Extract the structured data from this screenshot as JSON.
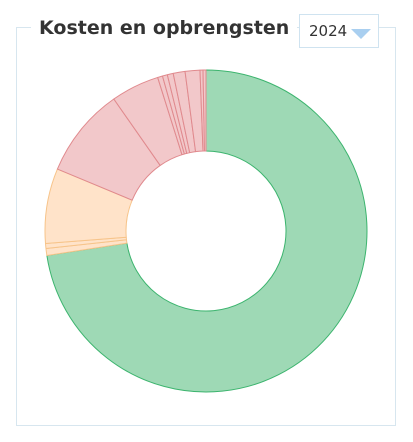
{
  "header": {
    "title": "Kosten en opbrengsten",
    "year_selector": {
      "selected": "2024",
      "icon": "chevron-down-icon"
    }
  },
  "colors": {
    "revenue_fill": "#9ed9b5",
    "revenue_stroke": "#3cb46e",
    "warning_fill": "#ffe3c9",
    "warning_stroke": "#f7c48a",
    "cost_fill": "#f2c8ca",
    "cost_stroke": "#e08a8e",
    "card_border": "#d7e6ef"
  },
  "chart_data": {
    "type": "pie",
    "donut": true,
    "title": "Kosten en opbrengsten",
    "slices": [
      {
        "value": 73.3,
        "group": "revenue"
      },
      {
        "value": 0.7,
        "group": "warning"
      },
      {
        "value": 0.5,
        "group": "warning"
      },
      {
        "value": 7.6,
        "group": "warning"
      },
      {
        "value": 9.1,
        "group": "cost"
      },
      {
        "value": 4.9,
        "group": "cost"
      },
      {
        "value": 0.5,
        "group": "cost"
      },
      {
        "value": 0.5,
        "group": "cost"
      },
      {
        "value": 0.6,
        "group": "cost"
      },
      {
        "value": 1.2,
        "group": "cost"
      },
      {
        "value": 1.5,
        "group": "cost"
      },
      {
        "value": 0.3,
        "group": "cost"
      },
      {
        "value": 0.3,
        "group": "cost"
      }
    ]
  }
}
